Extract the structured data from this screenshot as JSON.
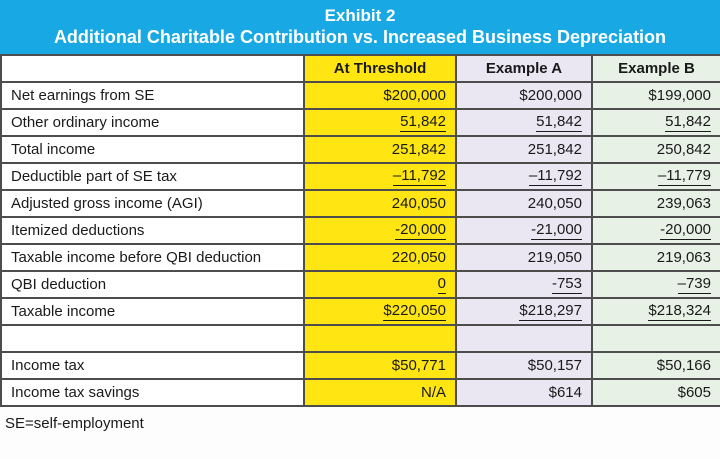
{
  "banner": {
    "title": "Exhibit 2",
    "subtitle": "Additional Charitable Contribution vs. Increased Business Depreciation"
  },
  "table": {
    "columns": [
      "At Threshold",
      "Example A",
      "Example B"
    ],
    "rows": [
      {
        "label": "Net earnings from SE",
        "values": [
          "$200,000",
          "$200,000",
          "$199,000"
        ],
        "underline": false
      },
      {
        "label": "Other ordinary income",
        "values": [
          "51,842",
          "51,842",
          "51,842"
        ],
        "underline": true
      },
      {
        "label": "Total income",
        "values": [
          "251,842",
          "251,842",
          "250,842"
        ],
        "underline": false
      },
      {
        "label": "Deductible part of SE tax",
        "values": [
          "–11,792",
          "–11,792",
          "–11,779"
        ],
        "underline": true
      },
      {
        "label": "Adjusted gross income (AGI)",
        "values": [
          "240,050",
          "240,050",
          "239,063"
        ],
        "underline": false
      },
      {
        "label": "Itemized deductions",
        "values": [
          "-20,000",
          "-21,000",
          "-20,000"
        ],
        "underline": true
      },
      {
        "label": "Taxable income before QBI deduction",
        "values": [
          "220,050",
          "219,050",
          "219,063"
        ],
        "underline": false
      },
      {
        "label": "QBI deduction",
        "values": [
          "0",
          "-753",
          "–739"
        ],
        "underline": true
      },
      {
        "label": "Taxable income",
        "values": [
          "$220,050",
          "$218,297",
          "$218,324"
        ],
        "underline": true
      },
      {
        "label": "",
        "values": [
          "",
          "",
          ""
        ],
        "underline": false,
        "blank": true
      },
      {
        "label": "Income tax",
        "values": [
          "$50,771",
          "$50,157",
          "$50,166"
        ],
        "underline": false
      },
      {
        "label": "Income tax savings",
        "values": [
          "N/A",
          "$614",
          "$605"
        ],
        "underline": false
      }
    ]
  },
  "footnote": "SE=self-employment",
  "colors": {
    "banner_bg": "#18a8e3",
    "threshold_bg": "#ffe613",
    "example_a_bg": "#eae6f2",
    "example_b_bg": "#e7f1e6",
    "border": "#4d4d4d"
  }
}
